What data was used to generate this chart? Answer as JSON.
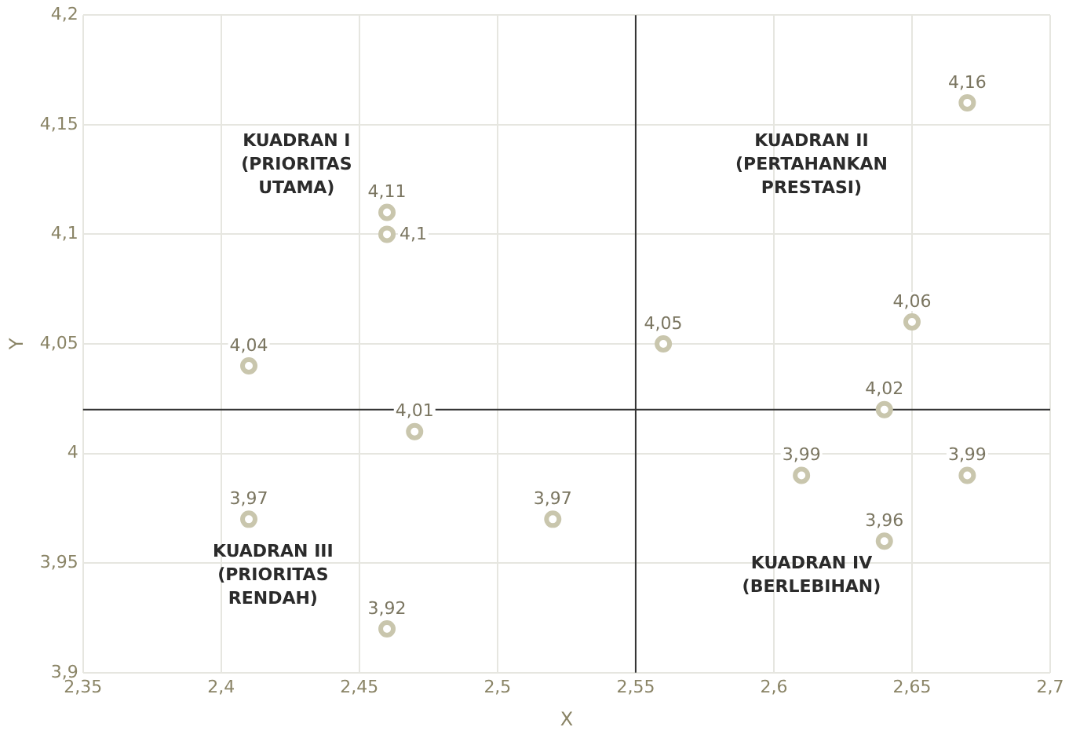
{
  "chart_data": {
    "type": "scatter",
    "xlabel": "X",
    "ylabel": "Y",
    "x": [
      2.41,
      2.46,
      2.46,
      2.47,
      2.41,
      2.46,
      2.52,
      2.56,
      2.61,
      2.64,
      2.64,
      2.65,
      2.67,
      2.67
    ],
    "values": [
      4.04,
      4.11,
      4.1,
      4.01,
      3.97,
      3.92,
      3.97,
      4.05,
      3.99,
      4.02,
      3.96,
      4.06,
      4.16,
      3.99
    ],
    "value_labels": [
      "4,04",
      "4,11",
      "4,1",
      "4,01",
      "3,97",
      "3,92",
      "3,97",
      "4,05",
      "3,99",
      "4,02",
      "3,96",
      "4,06",
      "4,16",
      "3,99"
    ],
    "color": "#c9c6ad",
    "marker": "circle",
    "grid": true,
    "xlim": [
      2.35,
      2.7
    ],
    "ylim": [
      3.9,
      4.2
    ],
    "xticks": [
      {
        "value": 2.35,
        "label": "2,35"
      },
      {
        "value": 2.4,
        "label": "2,4"
      },
      {
        "value": 2.45,
        "label": "2,45"
      },
      {
        "value": 2.5,
        "label": "2,5"
      },
      {
        "value": 2.55,
        "label": "2,55"
      },
      {
        "value": 2.6,
        "label": "2,6"
      },
      {
        "value": 2.65,
        "label": "2,65"
      },
      {
        "value": 2.7,
        "label": "2,7"
      }
    ],
    "yticks": [
      {
        "value": 3.9,
        "label": "3,9"
      },
      {
        "value": 3.95,
        "label": "3,95"
      },
      {
        "value": 4,
        "label": "4"
      },
      {
        "value": 4.05,
        "label": "4,05"
      },
      {
        "value": 4.1,
        "label": "4,1"
      },
      {
        "value": 4.15,
        "label": "4,15"
      },
      {
        "value": 4.2,
        "label": "4,2"
      }
    ],
    "ref_lines": [
      {
        "axis": "x",
        "value": 2.55,
        "color": "#333333"
      },
      {
        "axis": "y",
        "value": 4.02,
        "color": "#333333"
      }
    ],
    "annotations": [
      "KUADRAN I (PRIORITAS UTAMA)",
      "KUADRAN II (PERTAHANKAN PRESTASI)",
      "KUADRAN III (PRIORITAS RENDAH)",
      "KUADRAN IV (BERLEBIHAN)"
    ]
  }
}
